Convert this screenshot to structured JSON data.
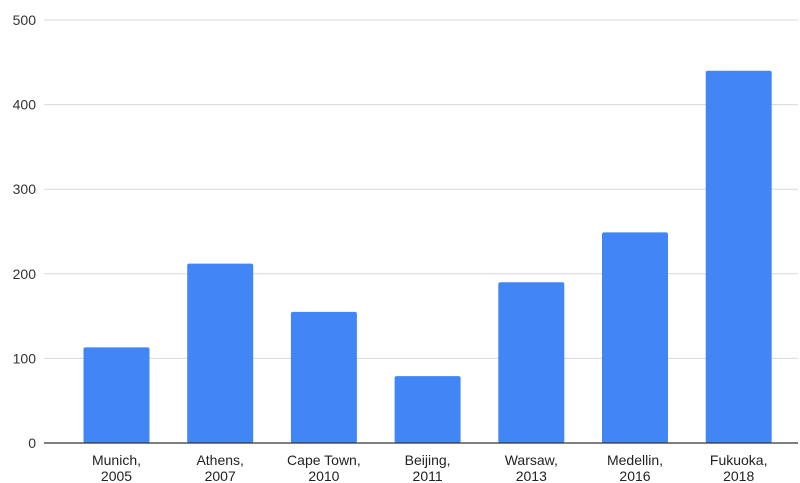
{
  "chart_data": {
    "type": "bar",
    "title": "",
    "xlabel": "",
    "ylabel": "",
    "categories": [
      [
        "Munich,",
        "2005"
      ],
      [
        "Athens,",
        "2007"
      ],
      [
        "Cape Town,",
        "2010"
      ],
      [
        "Beijing,",
        "2011"
      ],
      [
        "Warsaw,",
        "2013"
      ],
      [
        "Medellin,",
        "2016"
      ],
      [
        "Fukuoka,",
        "2018"
      ]
    ],
    "values": [
      113,
      212,
      155,
      79,
      190,
      249,
      440
    ],
    "ylim": [
      0,
      500
    ],
    "yticks": [
      "0",
      "100",
      "200",
      "300",
      "400",
      "500"
    ],
    "grid": true,
    "legend": "none",
    "bar_color": "#4285f4"
  }
}
